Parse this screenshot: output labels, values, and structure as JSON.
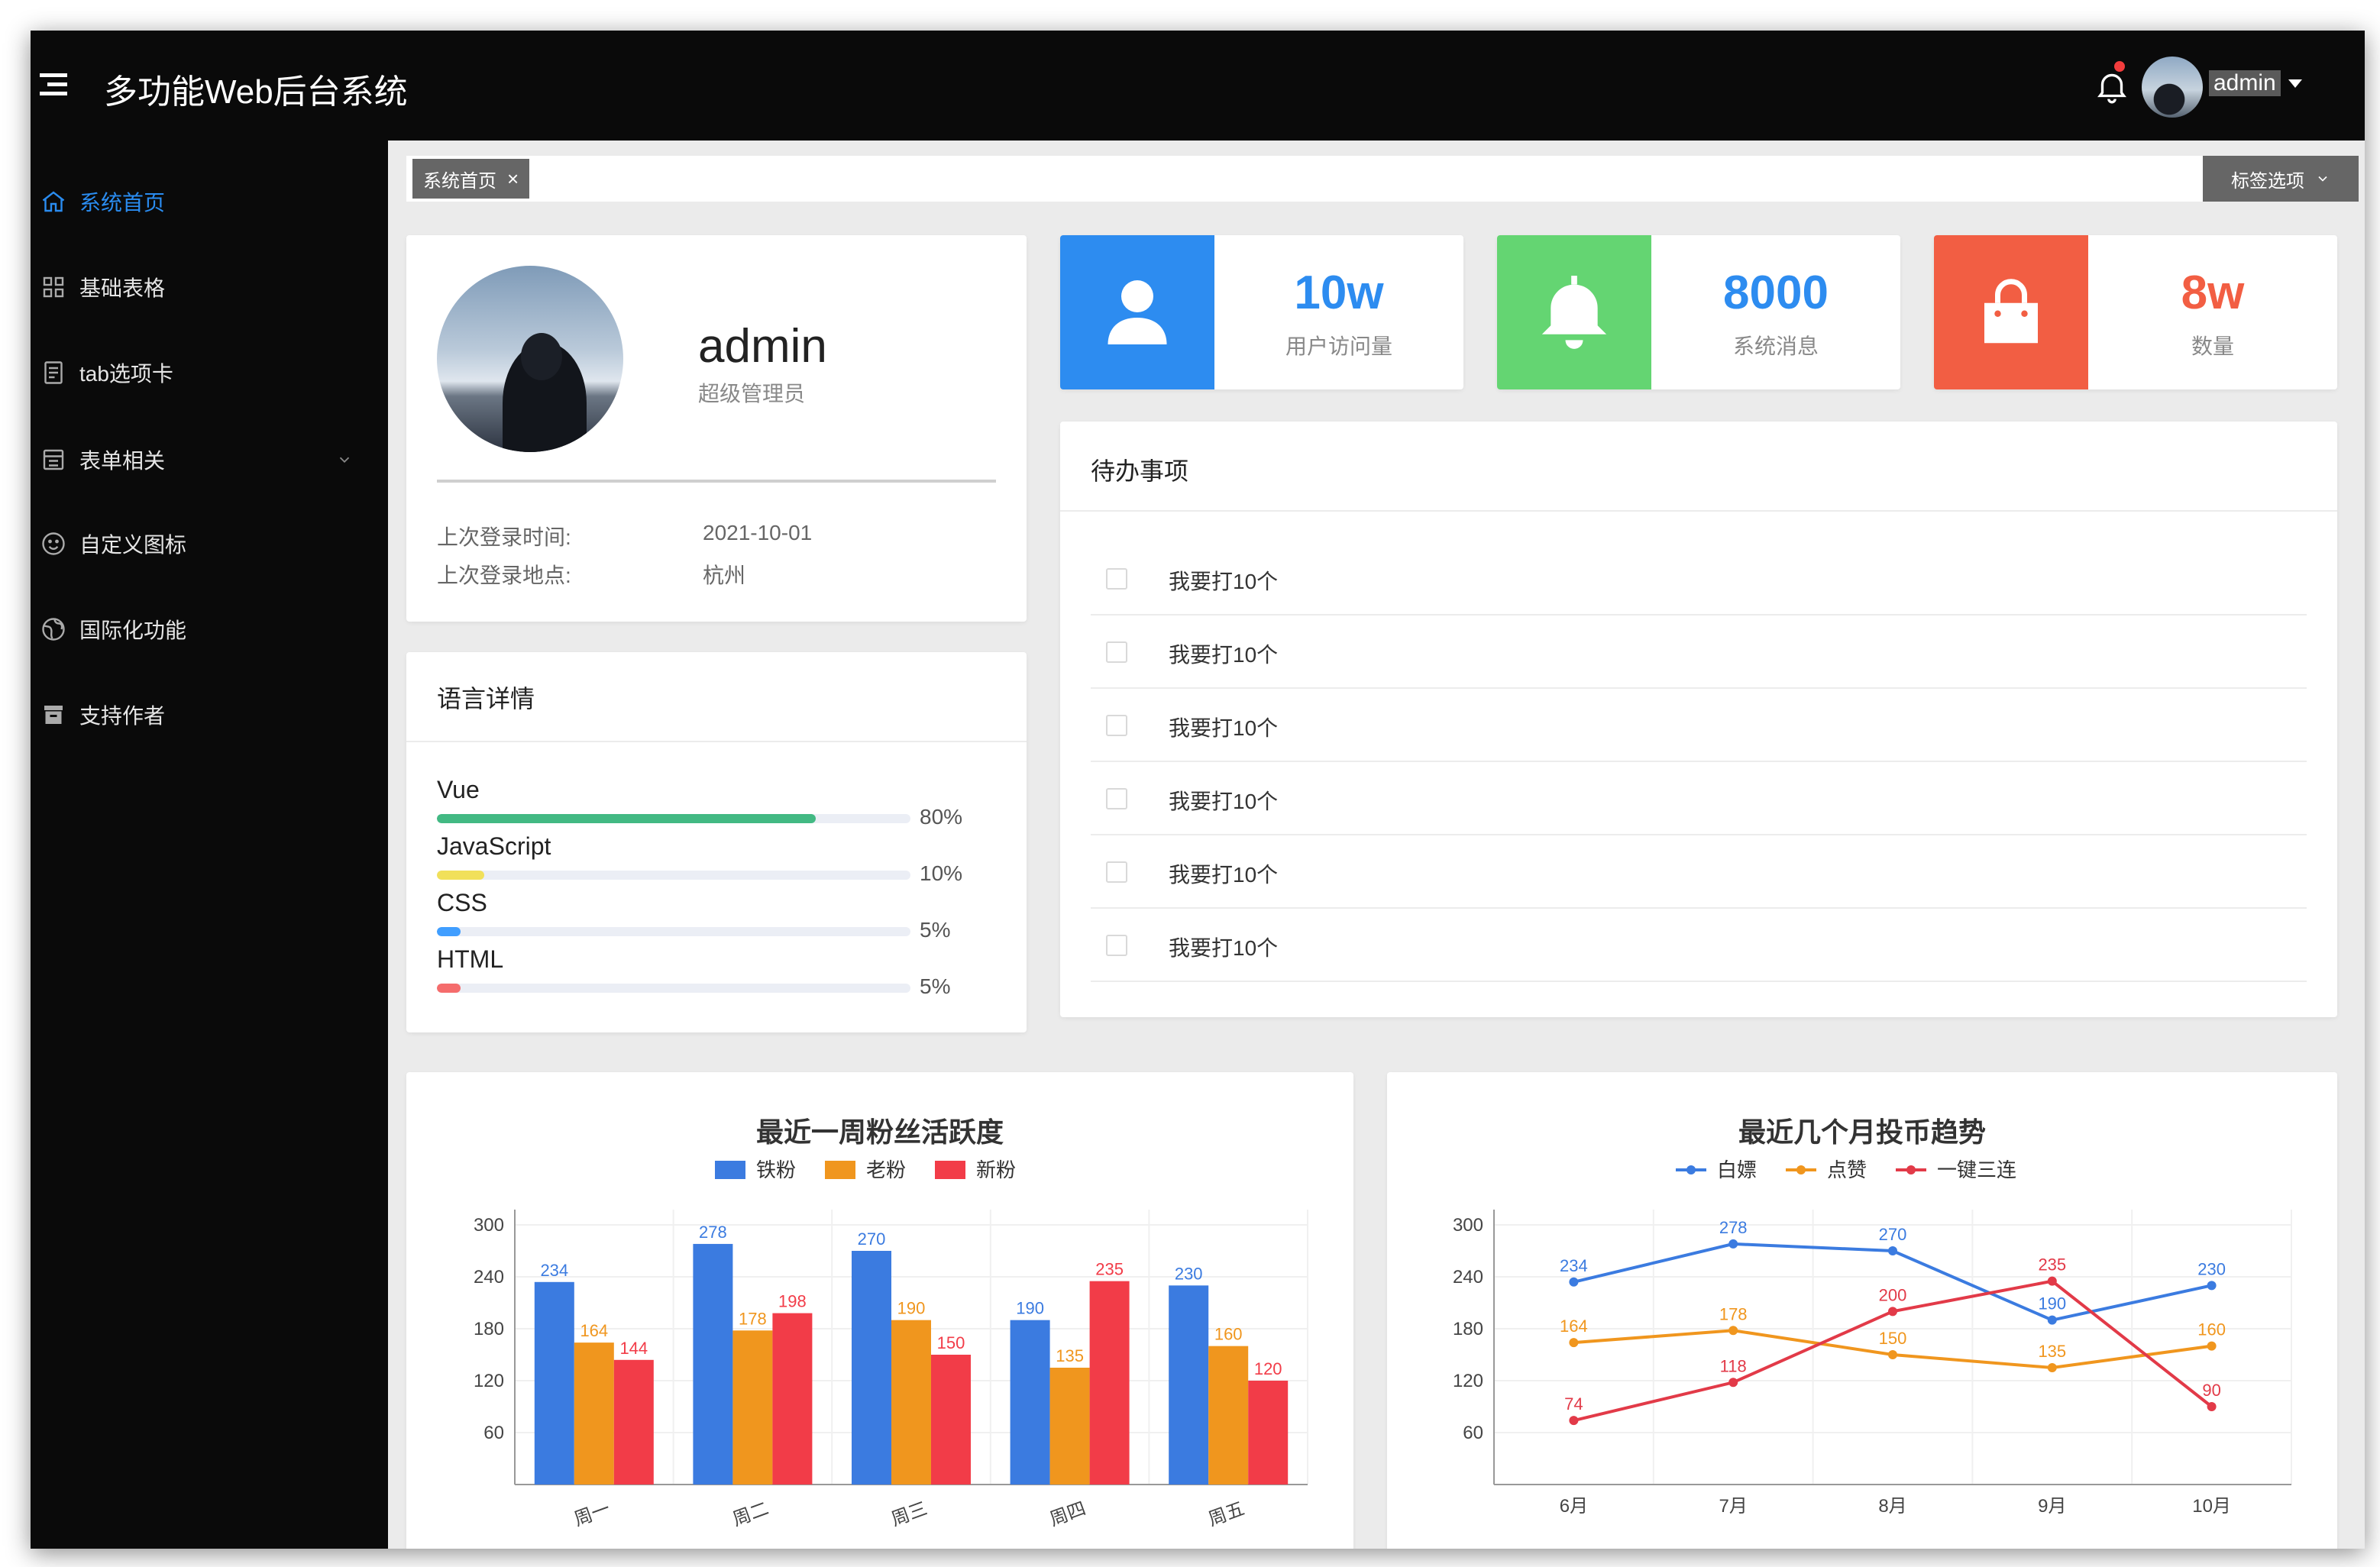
{
  "header": {
    "title": "多功能Web后台系统",
    "user": "admin"
  },
  "sidebar": {
    "items": [
      {
        "label": "系统首页",
        "icon": "home-icon",
        "active": true
      },
      {
        "label": "基础表格",
        "icon": "grid-icon",
        "active": false
      },
      {
        "label": "tab选项卡",
        "icon": "document-icon",
        "active": false
      },
      {
        "label": "表单相关",
        "icon": "list-icon",
        "active": false,
        "expandable": true
      },
      {
        "label": "自定义图标",
        "icon": "smile-icon",
        "active": false
      },
      {
        "label": "国际化功能",
        "icon": "globe-icon",
        "active": false
      },
      {
        "label": "支持作者",
        "icon": "gift-icon",
        "active": false
      }
    ]
  },
  "tags": {
    "current": "系统首页",
    "options_label": "标签选项"
  },
  "profile": {
    "name": "admin",
    "role": "超级管理员",
    "last_login_time_label": "上次登录时间:",
    "last_login_time": "2021-10-01",
    "last_login_place_label": "上次登录地点:",
    "last_login_place": "杭州"
  },
  "stats": [
    {
      "value": "10w",
      "label": "用户访问量",
      "color": "#2d8cf0",
      "icon": "user-icon"
    },
    {
      "value": "8000",
      "label": "系统消息",
      "color": "#64d572",
      "icon": "bell-icon"
    },
    {
      "value": "8w",
      "label": "数量",
      "color": "#f25e43",
      "icon": "shopping-bag-icon"
    }
  ],
  "todo": {
    "title": "待办事项",
    "items": [
      "我要打10个",
      "我要打10个",
      "我要打10个",
      "我要打10个",
      "我要打10个",
      "我要打10个"
    ]
  },
  "languages": {
    "title": "语言详情",
    "items": [
      {
        "name": "Vue",
        "percent": 80,
        "percent_text": "80%",
        "color": "#42b983"
      },
      {
        "name": "JavaScript",
        "percent": 10,
        "percent_text": "10%",
        "color": "#f1e05a"
      },
      {
        "name": "CSS",
        "percent": 5,
        "percent_text": "5%",
        "color": "#409eff"
      },
      {
        "name": "HTML",
        "percent": 5,
        "percent_text": "5%",
        "color": "#f56c6c"
      }
    ]
  },
  "chart_data": [
    {
      "type": "bar",
      "title": "最近一周粉丝活跃度",
      "categories": [
        "周一",
        "周二",
        "周三",
        "周四",
        "周五"
      ],
      "series": [
        {
          "name": "铁粉",
          "values": [
            234,
            278,
            270,
            190,
            230
          ],
          "color": "#3b7be0"
        },
        {
          "name": "老粉",
          "values": [
            164,
            178,
            190,
            135,
            160
          ],
          "color": "#f0961e"
        },
        {
          "name": "新粉",
          "values": [
            144,
            198,
            150,
            235,
            120
          ],
          "color": "#f23c48"
        }
      ],
      "yticks": [
        60,
        120,
        180,
        240,
        300
      ],
      "ylim": [
        0,
        300
      ],
      "legend": "top-center",
      "grid": true
    },
    {
      "type": "line",
      "title": "最近几个月投币趋势",
      "categories": [
        "6月",
        "7月",
        "8月",
        "9月",
        "10月"
      ],
      "series": [
        {
          "name": "白嫖",
          "values": [
            234,
            278,
            270,
            190,
            230
          ],
          "color": "#3b7be0"
        },
        {
          "name": "点赞",
          "values": [
            164,
            178,
            150,
            135,
            160
          ],
          "color": "#f0961e"
        },
        {
          "name": "一键三连",
          "values": [
            74,
            118,
            200,
            235,
            90
          ],
          "color": "#e23a48"
        }
      ],
      "yticks": [
        60,
        120,
        180,
        240,
        300
      ],
      "ylim": [
        0,
        300
      ],
      "legend": "top-center",
      "grid": true
    }
  ]
}
